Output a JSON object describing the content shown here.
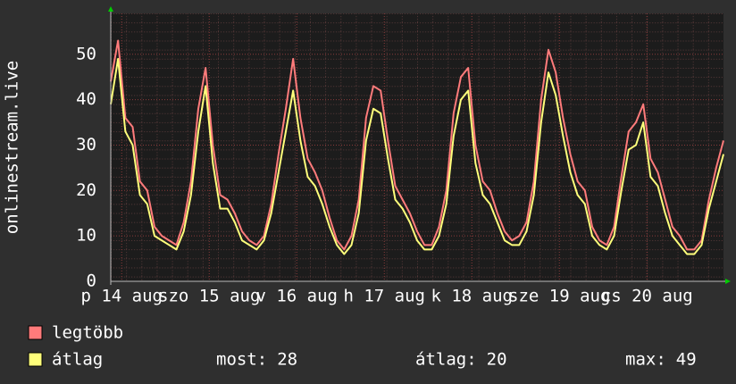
{
  "chart_data": {
    "type": "line",
    "y_label": "onlinestream.live",
    "x": [
      0,
      2,
      4,
      6,
      8,
      10,
      12,
      14,
      16,
      18,
      20,
      22,
      24,
      26,
      28,
      30,
      32,
      34,
      36,
      38,
      40,
      42,
      44,
      46,
      48,
      50,
      52,
      54,
      56,
      58,
      60,
      62,
      64,
      66,
      68,
      70,
      72,
      74,
      76,
      78,
      80,
      82,
      84,
      86,
      88,
      90,
      92,
      94,
      96,
      98,
      100,
      102,
      104,
      106,
      108,
      110,
      112,
      114,
      116,
      118,
      120,
      122,
      124,
      126,
      128,
      130,
      132,
      134,
      136,
      138,
      140,
      142,
      144,
      146,
      148,
      150,
      152,
      154,
      156,
      158,
      160,
      162,
      164,
      166,
      168
    ],
    "series": [
      {
        "name": "legtöbb",
        "color": "#ff7b7b",
        "values": [
          44,
          53,
          36,
          34,
          22,
          20,
          12,
          10,
          9,
          8,
          13,
          22,
          38,
          47,
          30,
          19,
          18,
          15,
          11,
          9,
          8,
          10,
          17,
          28,
          38,
          49,
          36,
          27,
          24,
          20,
          14,
          9,
          7,
          10,
          18,
          36,
          43,
          42,
          31,
          21,
          18,
          15,
          11,
          8,
          8,
          12,
          20,
          37,
          45,
          47,
          30,
          22,
          20,
          15,
          11,
          9,
          10,
          13,
          22,
          40,
          51,
          46,
          36,
          28,
          22,
          20,
          12,
          9,
          8,
          12,
          23,
          33,
          35,
          39,
          27,
          24,
          18,
          12,
          10,
          7,
          7,
          9,
          18,
          25,
          31
        ]
      },
      {
        "name": "átlag",
        "color": "#ffff7b",
        "values": [
          39,
          49,
          33,
          30,
          19,
          17,
          10,
          9,
          8,
          7,
          11,
          19,
          33,
          43,
          26,
          16,
          16,
          13,
          9,
          8,
          7,
          9,
          15,
          24,
          33,
          42,
          31,
          23,
          21,
          17,
          12,
          8,
          6,
          8,
          15,
          31,
          38,
          37,
          27,
          18,
          16,
          13,
          9,
          7,
          7,
          10,
          17,
          32,
          40,
          42,
          26,
          19,
          17,
          13,
          9,
          8,
          8,
          11,
          19,
          35,
          46,
          41,
          32,
          24,
          19,
          17,
          10,
          8,
          7,
          10,
          20,
          29,
          30,
          35,
          23,
          21,
          15,
          10,
          8,
          6,
          6,
          8,
          16,
          22,
          28
        ],
        "stats": [
          {
            "label": "most:",
            "value": 28
          },
          {
            "label": "átlag:",
            "value": 20
          },
          {
            "label": "max:",
            "value": 49
          }
        ]
      }
    ],
    "xlim": [
      0,
      168
    ],
    "xticks": [
      {
        "value": 3,
        "label": "p 14 aug"
      },
      {
        "value": 27,
        "label": "szo 15 aug"
      },
      {
        "value": 51,
        "label": "v 16 aug"
      },
      {
        "value": 75,
        "label": "h 17 aug"
      },
      {
        "value": 99,
        "label": "k 18 aug"
      },
      {
        "value": 123,
        "label": "sze 19 aug"
      },
      {
        "value": 147,
        "label": "cs 20 aug"
      }
    ],
    "ylim": [
      0,
      59
    ],
    "yticks": [
      0,
      10,
      20,
      30,
      40,
      50
    ],
    "grid": true
  }
}
